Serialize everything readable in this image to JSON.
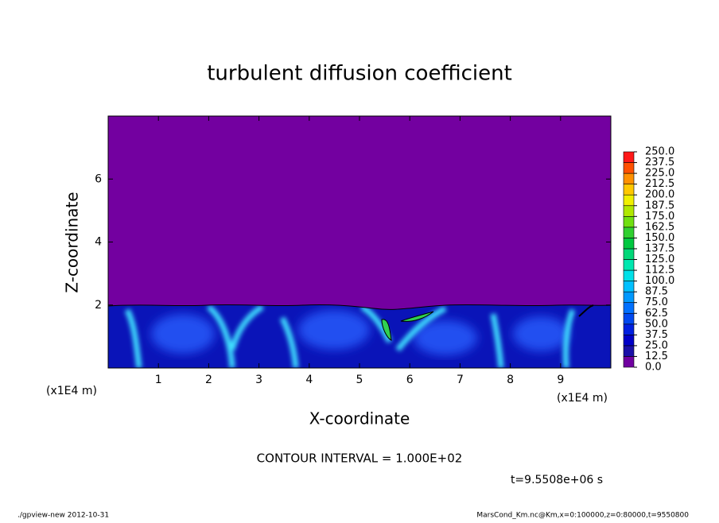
{
  "chart_data": {
    "type": "contour",
    "title": "turbulent diffusion coefficient",
    "xlabel": "X-coordinate",
    "ylabel": "Z-coordinate",
    "x_unit_label": "(x1E4 m)",
    "xlim": [
      0,
      10
    ],
    "xticks": [
      1,
      2,
      3,
      4,
      5,
      6,
      7,
      8,
      9
    ],
    "ylim": [
      0,
      8
    ],
    "yticks": [
      2,
      4,
      6
    ],
    "contour_interval_text": "CONTOUR INTERVAL = 1.000E+02",
    "time_text": "t=9.5508e+06 s",
    "footer_left": "./gpview-new  2012-10-31",
    "footer_right": "MarsCond_Km.nc@Km,x=0:100000,z=0:80000,t=9550800",
    "colorbar": {
      "clim": [
        0,
        250
      ],
      "ticks": [
        {
          "value": 0,
          "label": "0.0"
        },
        {
          "value": 12.5,
          "label": "12.5"
        },
        {
          "value": 25,
          "label": "25.0"
        },
        {
          "value": 37.5,
          "label": "37.5"
        },
        {
          "value": 50,
          "label": "50.0"
        },
        {
          "value": 62.5,
          "label": "62.5"
        },
        {
          "value": 75,
          "label": "75.0"
        },
        {
          "value": 87.5,
          "label": "87.5"
        },
        {
          "value": 100,
          "label": "100.0"
        },
        {
          "value": 112.5,
          "label": "112.5"
        },
        {
          "value": 125,
          "label": "125.0"
        },
        {
          "value": 137.5,
          "label": "137.5"
        },
        {
          "value": 150,
          "label": "150.0"
        },
        {
          "value": 162.5,
          "label": "162.5"
        },
        {
          "value": 175,
          "label": "175.0"
        },
        {
          "value": 187.5,
          "label": "187.5"
        },
        {
          "value": 200,
          "label": "200.0"
        },
        {
          "value": 212.5,
          "label": "212.5"
        },
        {
          "value": 225,
          "label": "225.0"
        },
        {
          "value": 237.5,
          "label": "237.5"
        },
        {
          "value": 250,
          "label": "250.0"
        }
      ],
      "colors": [
        "#7000a0",
        "#1a10a8",
        "#0000c8",
        "#0020e0",
        "#0048f0",
        "#0070ff",
        "#0098ff",
        "#00c0ff",
        "#00e0e8",
        "#00e8b0",
        "#00d878",
        "#00c840",
        "#30d030",
        "#70e010",
        "#b0e800",
        "#f0f000",
        "#ffc800",
        "#ff9000",
        "#ff5000",
        "#ff1818"
      ]
    }
  }
}
